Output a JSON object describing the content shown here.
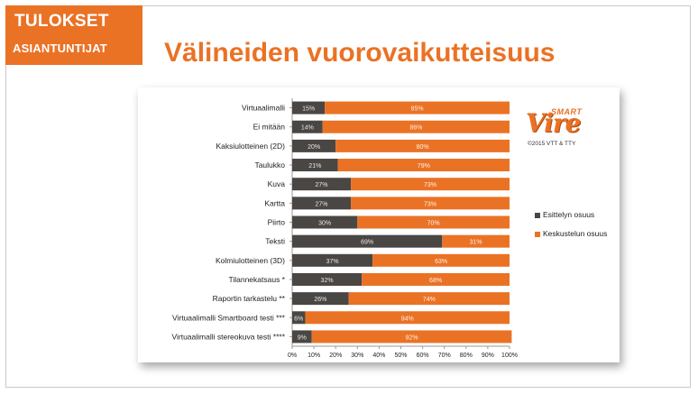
{
  "header": {
    "badge_line1": "TULOKSET",
    "badge_line2": "ASIANTUNTIJAT",
    "title": "Välineiden vuorovaikutteisuus"
  },
  "logo": {
    "smart": "SMART",
    "vire": "Vire",
    "copyright": "©2015 VTT & TTY"
  },
  "colors": {
    "accent": "#ea7225",
    "series1": "#4a4643",
    "series2": "#ea7225"
  },
  "chart_data": {
    "type": "bar",
    "orientation": "horizontal",
    "stacked": "percent",
    "categories": [
      "Virtuaalimalli",
      "Ei mitään",
      "Kaksiulotteinen (2D)",
      "Taulukko",
      "Kuva",
      "Kartta",
      "Piirto",
      "Teksti",
      "Kolmiulotteinen (3D)",
      "Tilannekatsaus *",
      "Raportin tarkastelu **",
      "Virtuaalimalli Smartboard testi ***",
      "Virtuaalimalli stereokuva testi ****"
    ],
    "series": [
      {
        "name": "Esittelyn osuus",
        "values": [
          15,
          14,
          20,
          21,
          27,
          27,
          30,
          69,
          37,
          32,
          26,
          6,
          9
        ],
        "color": "#4a4643"
      },
      {
        "name": "Keskustelun osuus",
        "values": [
          85,
          86,
          80,
          79,
          73,
          73,
          70,
          31,
          63,
          68,
          74,
          94,
          92
        ],
        "color": "#ea7225"
      }
    ],
    "data_labels": [
      [
        "15%",
        "14%",
        "20%",
        "21%",
        "27%",
        "27%",
        "30%",
        "69%",
        "37%",
        "32%",
        "26%",
        "6%",
        "9%"
      ],
      [
        "85%",
        "86%",
        "80%",
        "79%",
        "73%",
        "73%",
        "70%",
        "31%",
        "63%",
        "68%",
        "74%",
        "94%",
        "92%"
      ]
    ],
    "xlim": [
      0,
      100
    ],
    "xticks": [
      "0%",
      "10%",
      "20%",
      "30%",
      "40%",
      "50%",
      "60%",
      "70%",
      "80%",
      "90%",
      "100%"
    ],
    "legend_position": "right",
    "grid": false
  }
}
